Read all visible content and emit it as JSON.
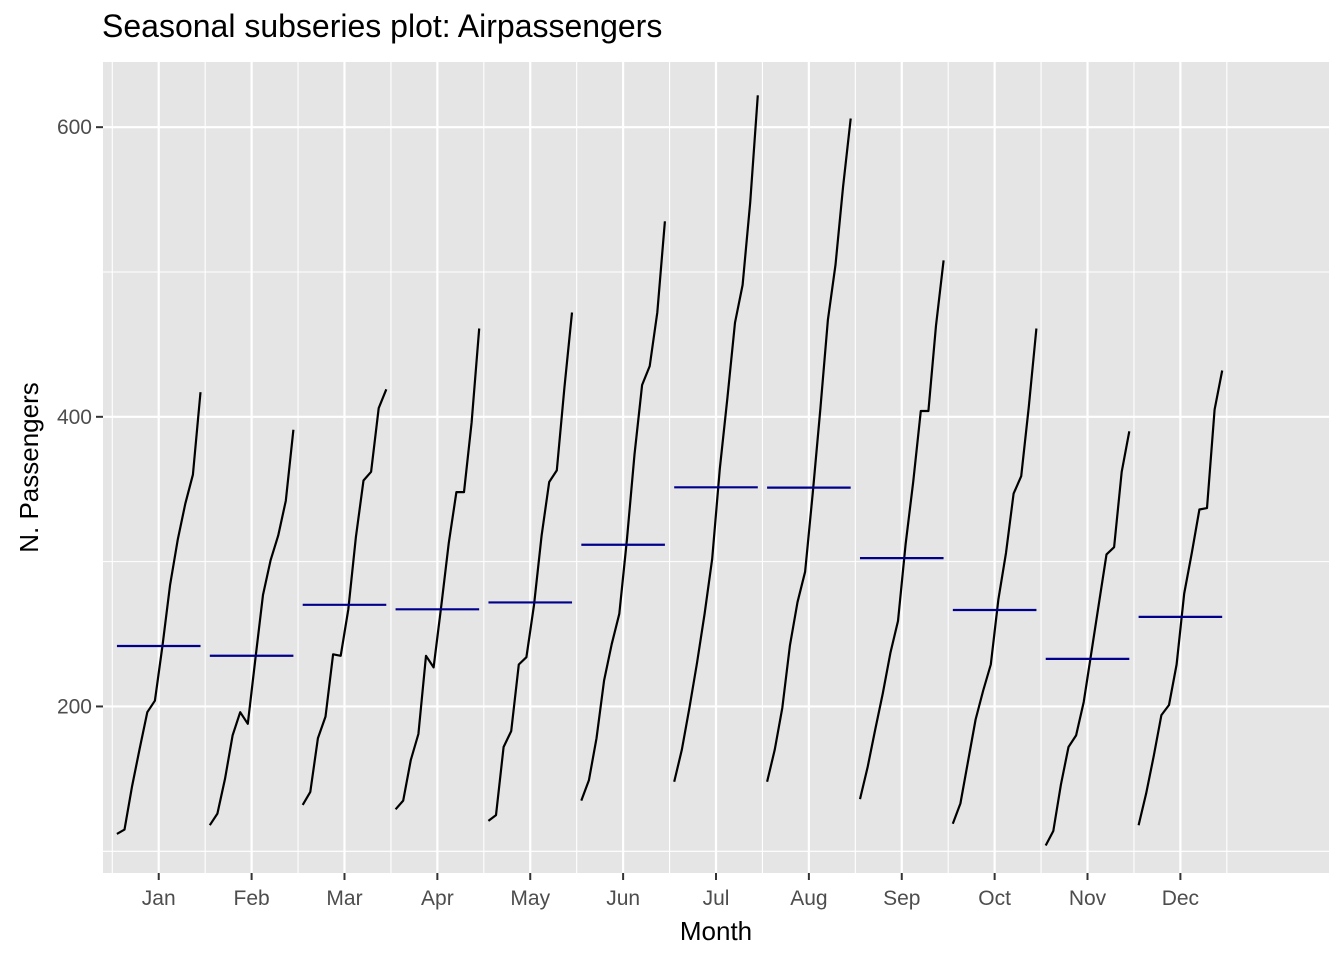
{
  "chart_data": {
    "type": "line",
    "title": "Seasonal subseries plot: Airpassengers",
    "xlabel": "Month",
    "ylabel": "N. Passengers",
    "ylim": [
      85,
      645
    ],
    "yticks": [
      200,
      400,
      600
    ],
    "grid": true,
    "categories": [
      "Jan",
      "Feb",
      "Mar",
      "Apr",
      "May",
      "Jun",
      "Jul",
      "Aug",
      "Sep",
      "Oct",
      "Nov",
      "Dec"
    ],
    "series": [
      {
        "category": "Jan",
        "values": [
          112,
          115,
          145,
          171,
          196,
          204,
          242,
          284,
          315,
          340,
          360,
          417
        ],
        "mean": 241.75
      },
      {
        "category": "Feb",
        "values": [
          118,
          126,
          150,
          180,
          196,
          188,
          233,
          277,
          301,
          318,
          342,
          391
        ],
        "mean": 235.0
      },
      {
        "category": "Mar",
        "values": [
          132,
          141,
          178,
          193,
          236,
          235,
          267,
          317,
          356,
          362,
          406,
          419
        ],
        "mean": 270.17
      },
      {
        "category": "Apr",
        "values": [
          129,
          135,
          163,
          181,
          235,
          227,
          269,
          313,
          348,
          348,
          396,
          461
        ],
        "mean": 267.08
      },
      {
        "category": "May",
        "values": [
          121,
          125,
          172,
          183,
          229,
          234,
          270,
          318,
          355,
          363,
          420,
          472
        ],
        "mean": 271.83
      },
      {
        "category": "Jun",
        "values": [
          135,
          149,
          178,
          218,
          243,
          264,
          315,
          374,
          422,
          435,
          472,
          535
        ],
        "mean": 311.67
      },
      {
        "category": "Jul",
        "values": [
          148,
          170,
          199,
          230,
          264,
          302,
          364,
          413,
          465,
          491,
          548,
          622
        ],
        "mean": 351.33
      },
      {
        "category": "Aug",
        "values": [
          148,
          170,
          199,
          242,
          272,
          293,
          347,
          405,
          467,
          505,
          559,
          606
        ],
        "mean": 351.08
      },
      {
        "category": "Sep",
        "values": [
          136,
          158,
          184,
          209,
          237,
          259,
          312,
          355,
          404,
          404,
          463,
          508
        ],
        "mean": 302.42
      },
      {
        "category": "Oct",
        "values": [
          119,
          133,
          162,
          191,
          211,
          229,
          274,
          306,
          347,
          359,
          407,
          461
        ],
        "mean": 266.58
      },
      {
        "category": "Nov",
        "values": [
          104,
          114,
          146,
          172,
          180,
          203,
          237,
          271,
          305,
          310,
          362,
          390
        ],
        "mean": 232.83
      },
      {
        "category": "Dec",
        "values": [
          118,
          140,
          166,
          194,
          201,
          229,
          278,
          306,
          336,
          337,
          405,
          432
        ],
        "mean": 261.83
      }
    ],
    "colors": {
      "panel": "#e5e5e5",
      "grid": "#ffffff",
      "line": "#000000",
      "mean": "#00008b",
      "tick_text": "#4d4d4d",
      "tick_mark": "#333333"
    }
  }
}
